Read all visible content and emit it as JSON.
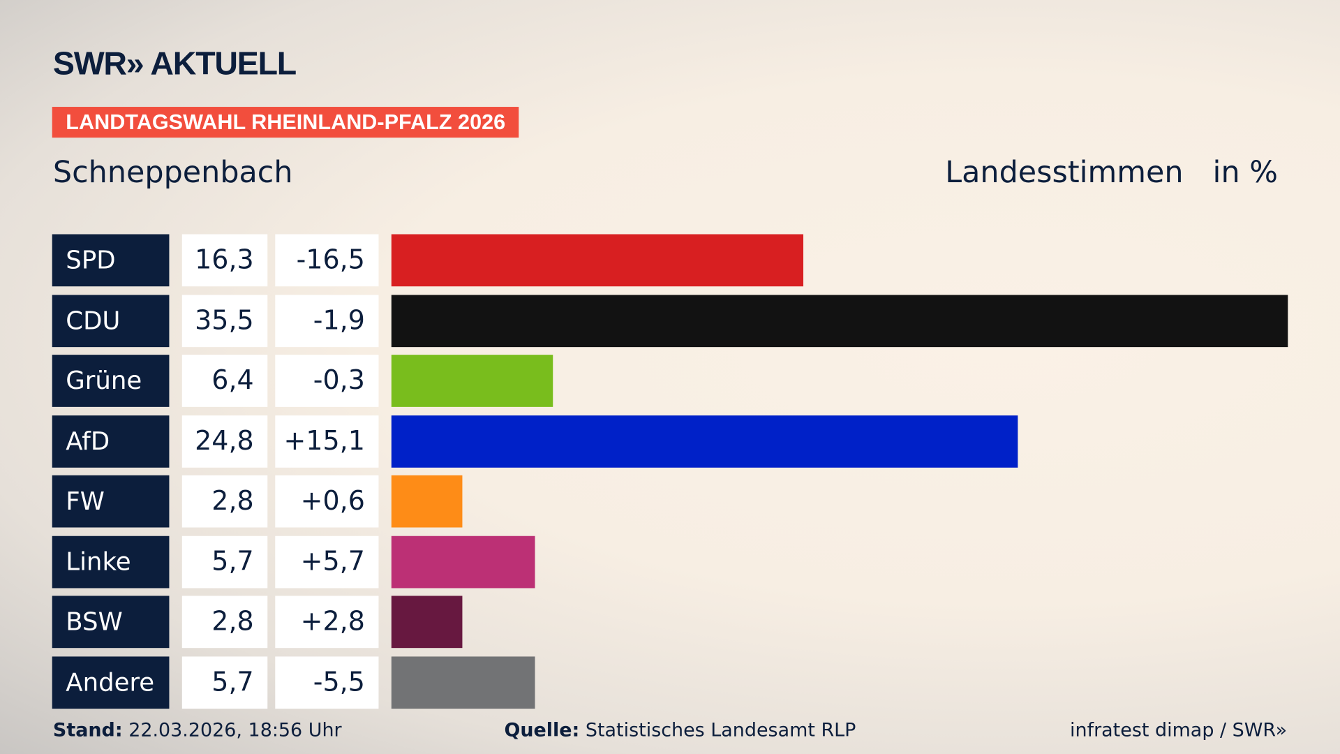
{
  "header": {
    "logo": "SWR» AKTUELL",
    "badge": "LANDTAGSWAHL RHEINLAND-PFALZ 2026",
    "place": "Schneppenbach",
    "measure": "Landesstimmen",
    "unit": "in %"
  },
  "chart_data": {
    "type": "bar",
    "orientation": "horizontal",
    "title": "Schneppenbach",
    "xlabel": "Landesstimmen in %",
    "categories": [
      "SPD",
      "CDU",
      "Grüne",
      "AfD",
      "FW",
      "Linke",
      "BSW",
      "Andere"
    ],
    "values": [
      16.3,
      35.5,
      6.4,
      24.8,
      2.8,
      5.7,
      2.8,
      5.7
    ],
    "value_labels": [
      "16,3",
      "35,5",
      "6,4",
      "24,8",
      "2,8",
      "5,7",
      "2,8",
      "5,7"
    ],
    "diff_labels": [
      "-16,5",
      "-1,9",
      "-0,3",
      "+15,1",
      "+0,6",
      "+5,7",
      "+2,8",
      "-5,5"
    ],
    "colors": [
      "#d81f21",
      "#121212",
      "#79bd1d",
      "#0021c8",
      "#fe8c17",
      "#bc3075",
      "#671840",
      "#727375"
    ],
    "xlim": [
      0,
      35.5
    ],
    "grid": false
  },
  "footer": {
    "stand_label": "Stand:",
    "stand": "22.03.2026, 18:56 Uhr",
    "source_label": "Quelle:",
    "source": "Statistisches Landesamt RLP",
    "credit": "infratest dimap / SWR»"
  }
}
